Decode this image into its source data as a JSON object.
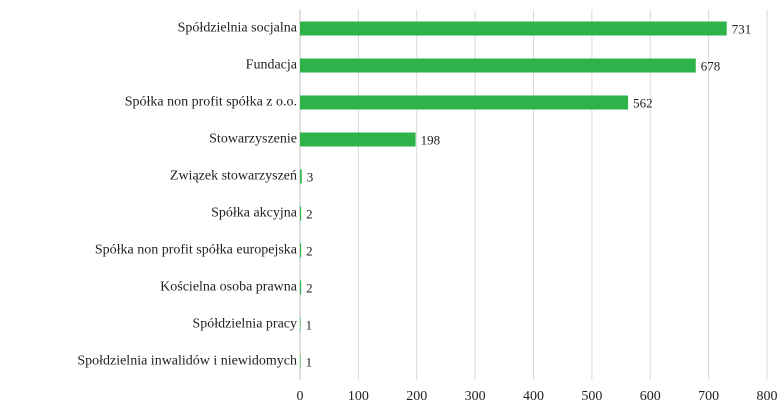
{
  "chart_data": {
    "type": "hbar",
    "categories": [
      "Spółdzielnia socjalna",
      "Fundacja",
      "Spółka non profit spółka z o.o.",
      "Stowarzyszenie",
      "Związek stowarzyszeń",
      "Spółka akcyjna",
      "Spółka non profit spółka europejska",
      "Kościelna osoba prawna",
      "Spółdzielnia pracy",
      "Społdzielnia inwalidów i niewidomych"
    ],
    "values": [
      731,
      678,
      562,
      198,
      3,
      2,
      2,
      2,
      1,
      1
    ],
    "color": "#2eb34b",
    "xlim": [
      0,
      800
    ],
    "xticks": [
      0,
      100,
      200,
      300,
      400,
      500,
      600,
      700,
      800
    ],
    "grid": true
  }
}
